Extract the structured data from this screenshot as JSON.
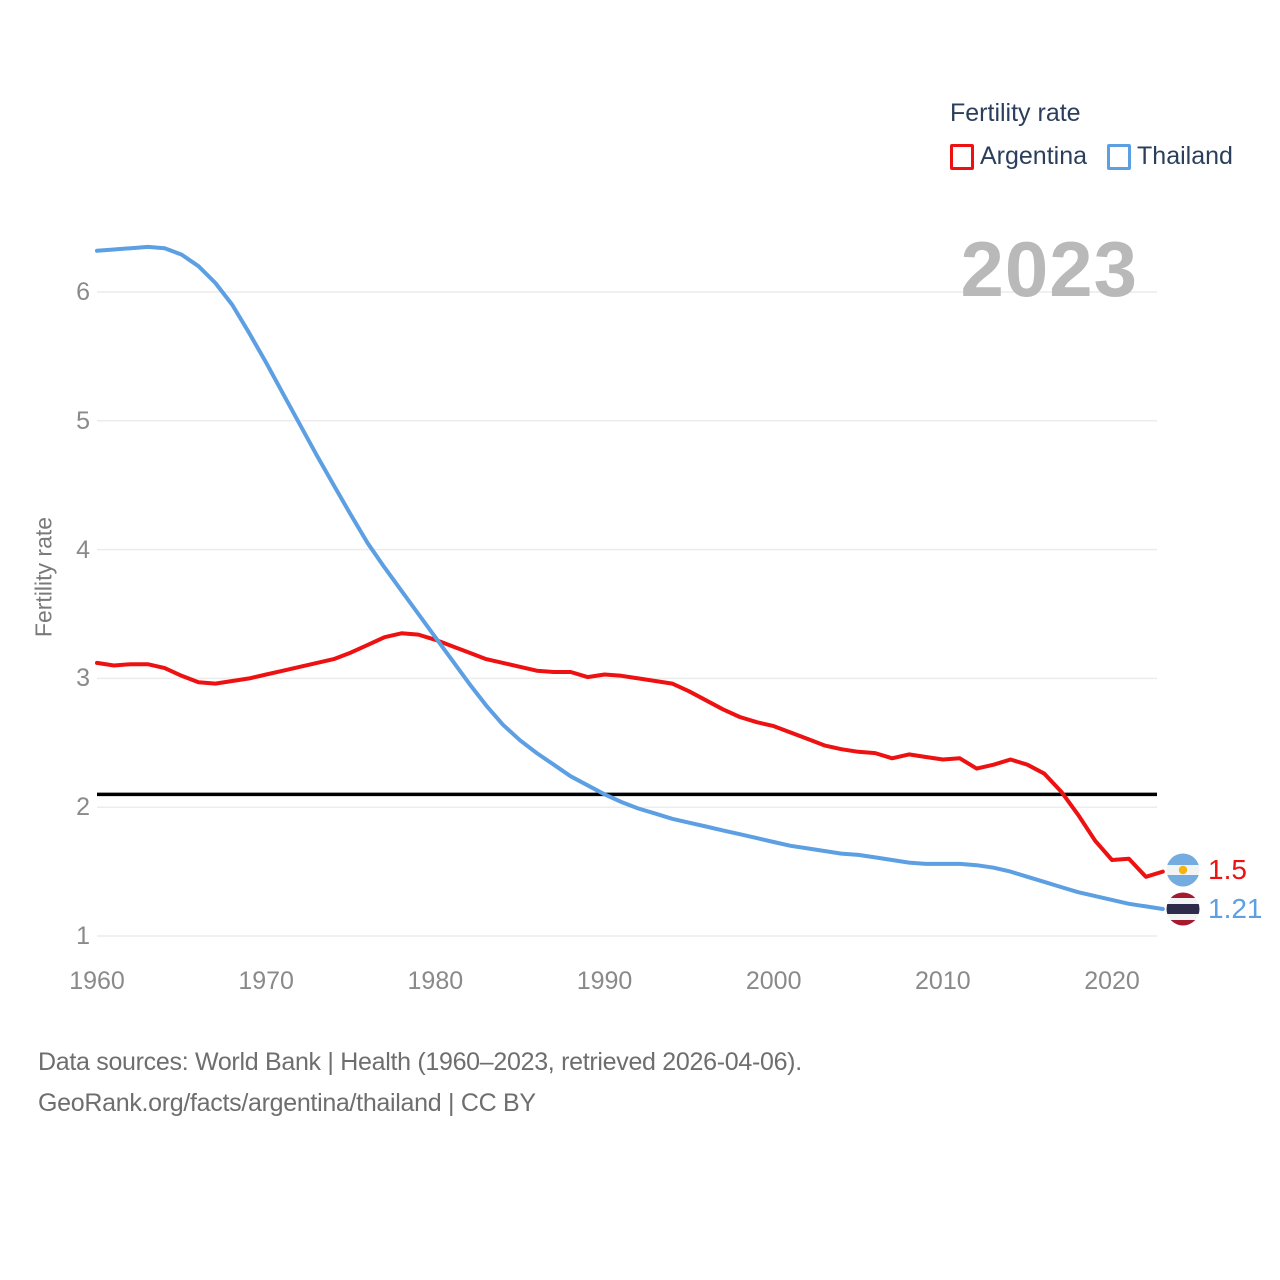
{
  "legend": {
    "title": "Fertility rate",
    "items": [
      {
        "label": "Argentina",
        "color": "#ee1111"
      },
      {
        "label": "Thailand",
        "color": "#5c9fe3"
      }
    ]
  },
  "big_year": "2023",
  "end_labels": [
    {
      "country": "Argentina",
      "value": "1.5",
      "color": "#ee1111",
      "flag": "argentina-flag"
    },
    {
      "country": "Thailand",
      "value": "1.21",
      "color": "#5c9fe3",
      "flag": "thailand-flag"
    }
  ],
  "footer": {
    "line1": "Data sources: World Bank | Health (1960–2023, retrieved 2026-04-06).",
    "line2": "GeoRank.org/facts/argentina/thailand | CC BY"
  },
  "chart_data": {
    "type": "line",
    "title": "Fertility rate",
    "ylabel": "Fertility rate",
    "grid": true,
    "legend_position": "top-right",
    "xlim": [
      1960,
      2023
    ],
    "ylim": [
      1,
      6.5
    ],
    "y_ticks": [
      1,
      2,
      3,
      4,
      5,
      6
    ],
    "x_label_ticks": [
      1960,
      1970,
      1980,
      1990,
      2000,
      2010,
      2020
    ],
    "reference_line": {
      "value": 2.1,
      "color": "#000000"
    },
    "x": [
      1960,
      1961,
      1962,
      1963,
      1964,
      1965,
      1966,
      1967,
      1968,
      1969,
      1970,
      1971,
      1972,
      1973,
      1974,
      1975,
      1976,
      1977,
      1978,
      1979,
      1980,
      1981,
      1982,
      1983,
      1984,
      1985,
      1986,
      1987,
      1988,
      1989,
      1990,
      1991,
      1992,
      1993,
      1994,
      1995,
      1996,
      1997,
      1998,
      1999,
      2000,
      2001,
      2002,
      2003,
      2004,
      2005,
      2006,
      2007,
      2008,
      2009,
      2010,
      2011,
      2012,
      2013,
      2014,
      2015,
      2016,
      2017,
      2018,
      2019,
      2020,
      2021,
      2022,
      2023
    ],
    "series": [
      {
        "name": "Argentina",
        "color": "#ee1111",
        "end_value": 1.5,
        "values": [
          3.12,
          3.1,
          3.11,
          3.11,
          3.08,
          3.02,
          2.97,
          2.96,
          2.98,
          3.0,
          3.03,
          3.06,
          3.09,
          3.12,
          3.15,
          3.2,
          3.26,
          3.32,
          3.35,
          3.34,
          3.3,
          3.25,
          3.2,
          3.15,
          3.12,
          3.09,
          3.06,
          3.05,
          3.05,
          3.01,
          3.03,
          3.02,
          3.0,
          2.98,
          2.96,
          2.9,
          2.83,
          2.76,
          2.7,
          2.66,
          2.63,
          2.58,
          2.53,
          2.48,
          2.45,
          2.43,
          2.42,
          2.38,
          2.41,
          2.39,
          2.37,
          2.38,
          2.3,
          2.33,
          2.37,
          2.33,
          2.26,
          2.12,
          1.94,
          1.74,
          1.59,
          1.6,
          1.46,
          1.5
        ]
      },
      {
        "name": "Thailand",
        "color": "#5c9fe3",
        "end_value": 1.21,
        "values": [
          6.32,
          6.33,
          6.34,
          6.35,
          6.34,
          6.29,
          6.2,
          6.07,
          5.9,
          5.68,
          5.45,
          5.21,
          4.97,
          4.73,
          4.5,
          4.27,
          4.05,
          3.86,
          3.68,
          3.5,
          3.32,
          3.14,
          2.96,
          2.79,
          2.64,
          2.52,
          2.42,
          2.33,
          2.24,
          2.17,
          2.1,
          2.04,
          1.99,
          1.95,
          1.91,
          1.88,
          1.85,
          1.82,
          1.79,
          1.76,
          1.73,
          1.7,
          1.68,
          1.66,
          1.64,
          1.63,
          1.61,
          1.59,
          1.57,
          1.56,
          1.56,
          1.56,
          1.55,
          1.53,
          1.5,
          1.46,
          1.42,
          1.38,
          1.34,
          1.31,
          1.28,
          1.25,
          1.23,
          1.21
        ]
      }
    ]
  }
}
